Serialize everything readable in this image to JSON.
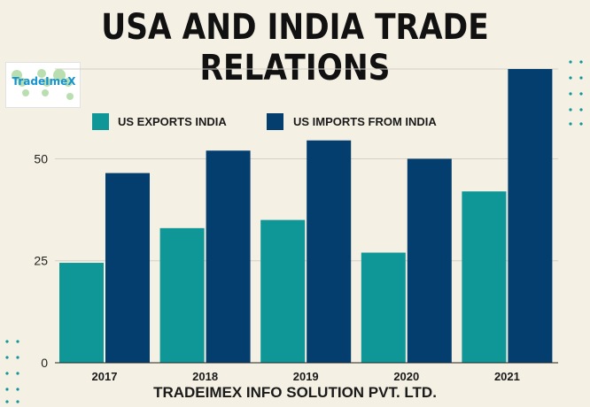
{
  "title": "USA AND INDIA TRADE RELATIONS",
  "logo": {
    "text": "TradeImeX"
  },
  "footer": "TRADEIMEX INFO SOLUTION PVT. LTD.",
  "colors": {
    "exports": "#0f9797",
    "imports": "#033e6e",
    "background": "#f5f0e4"
  },
  "chart_data": {
    "type": "bar",
    "categories": [
      "2017",
      "2018",
      "2019",
      "2020",
      "2021"
    ],
    "series": [
      {
        "name": "US EXPORTS INDIA",
        "values": [
          24.5,
          33,
          35,
          27,
          42
        ]
      },
      {
        "name": "US IMPORTS FROM INDIA",
        "values": [
          46.5,
          52,
          54.5,
          50,
          72
        ]
      }
    ],
    "yticks": [
      0,
      25,
      50
    ],
    "ylim": [
      0,
      72
    ],
    "grid": true,
    "legend": "top-left"
  }
}
